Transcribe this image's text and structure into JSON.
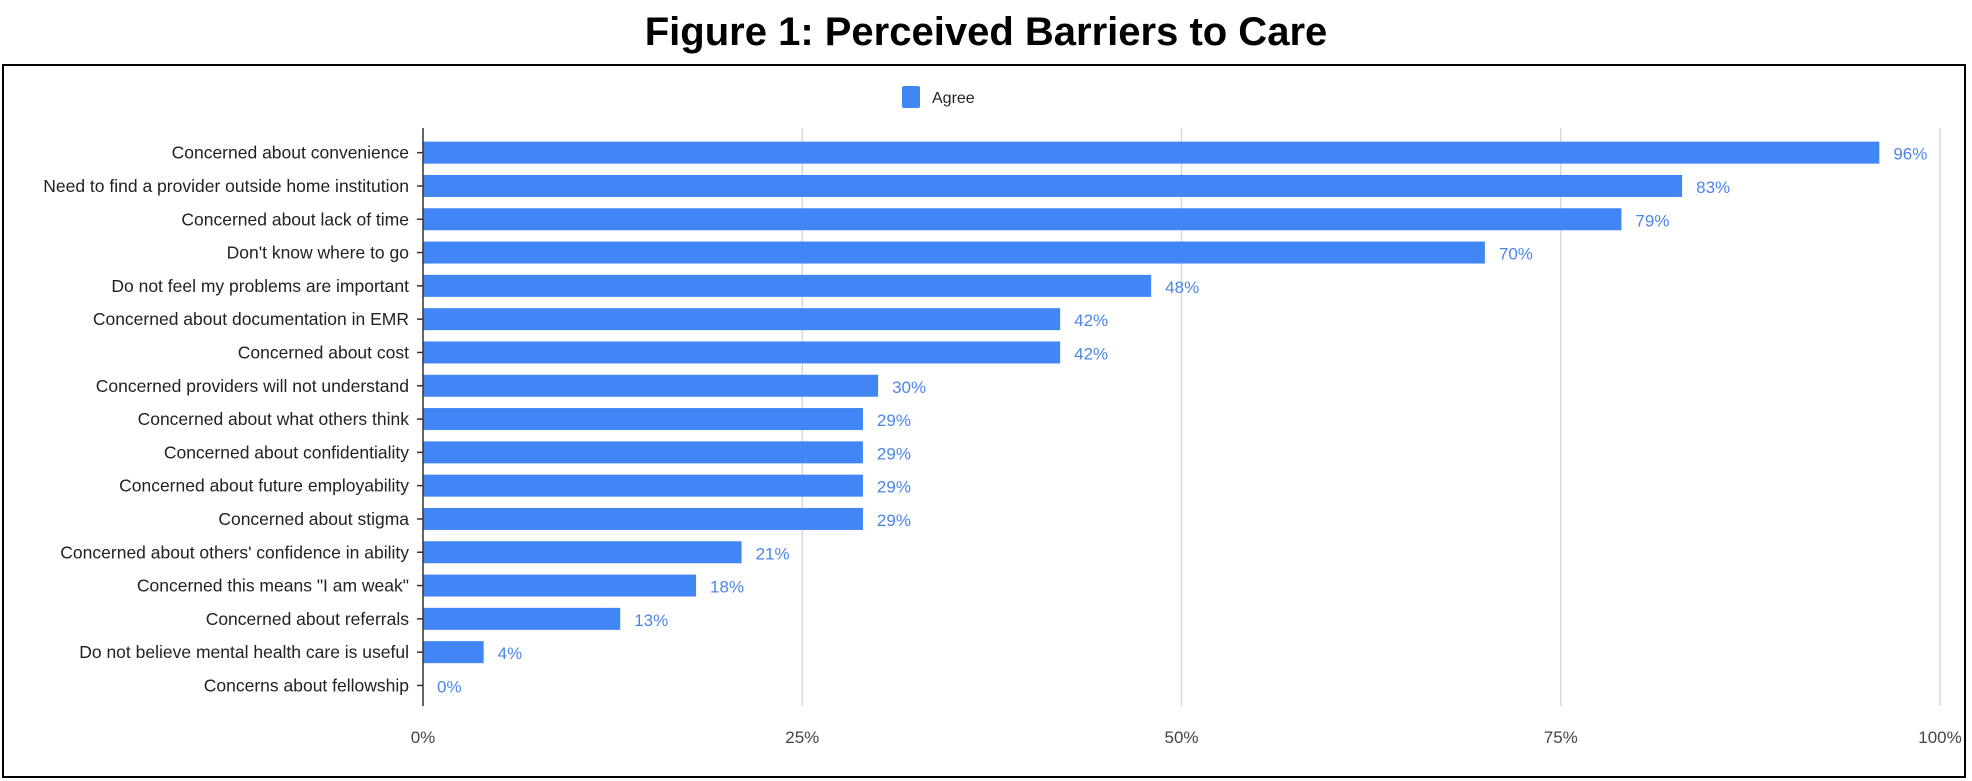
{
  "title": "Figure 1: Perceived Barriers to Care",
  "colors": {
    "bar": "#4285f4",
    "label": "#4a86e8",
    "grid": "#d9d9d9",
    "axis": "#333333"
  },
  "chart_data": {
    "type": "bar",
    "orientation": "horizontal",
    "legend": {
      "position": "top",
      "entries": [
        "Agree"
      ]
    },
    "series": [
      {
        "name": "Agree",
        "values": [
          96,
          83,
          79,
          70,
          48,
          42,
          42,
          30,
          29,
          29,
          29,
          29,
          21,
          18,
          13,
          4,
          0
        ]
      }
    ],
    "categories": [
      "Concerned about convenience",
      "Need to find a provider outside home institution",
      "Concerned about lack of time",
      "Don't know where to go",
      "Do not feel my problems are important",
      "Concerned about documentation in EMR",
      "Concerned about cost",
      "Concerned providers will not understand",
      "Concerned about what others think",
      "Concerned about confidentiality",
      "Concerned about future employability",
      "Concerned about stigma",
      "Concerned about others' confidence in ability",
      "Concerned this means \"I am weak\"",
      "Concerned about referrals",
      "Do not believe mental health care is useful",
      "Concerns about fellowship"
    ],
    "data_labels": [
      "96%",
      "83%",
      "79%",
      "70%",
      "48%",
      "42%",
      "42%",
      "30%",
      "29%",
      "29%",
      "29%",
      "29%",
      "21%",
      "18%",
      "13%",
      "4%",
      "0%"
    ],
    "x_ticks": [
      0,
      25,
      50,
      75,
      100
    ],
    "x_tick_labels": [
      "0%",
      "25%",
      "50%",
      "75%",
      "100%"
    ],
    "xlim": [
      0,
      100
    ],
    "grid": true
  }
}
